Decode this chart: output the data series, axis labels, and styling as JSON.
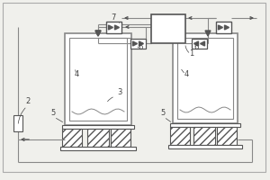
{
  "bg_color": "#f0f0ec",
  "lc": "#888888",
  "dc": "#555555",
  "figsize": [
    3.0,
    2.0
  ],
  "dpi": 100
}
